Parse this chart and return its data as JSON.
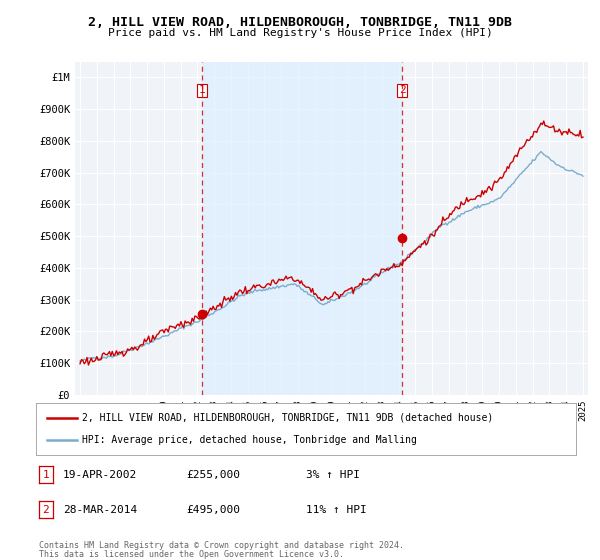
{
  "title": "2, HILL VIEW ROAD, HILDENBOROUGH, TONBRIDGE, TN11 9DB",
  "subtitle": "Price paid vs. HM Land Registry's House Price Index (HPI)",
  "legend_line1": "2, HILL VIEW ROAD, HILDENBOROUGH, TONBRIDGE, TN11 9DB (detached house)",
  "legend_line2": "HPI: Average price, detached house, Tonbridge and Malling",
  "footer1": "Contains HM Land Registry data © Crown copyright and database right 2024.",
  "footer2": "This data is licensed under the Open Government Licence v3.0.",
  "sale1_label": "1",
  "sale1_date": "19-APR-2002",
  "sale1_price": "£255,000",
  "sale1_hpi": "3% ↑ HPI",
  "sale1_year": 2002.29,
  "sale1_value": 255000,
  "sale2_label": "2",
  "sale2_date": "28-MAR-2014",
  "sale2_price": "£495,000",
  "sale2_hpi": "11% ↑ HPI",
  "sale2_year": 2014.21,
  "sale2_value": 495000,
  "line_color_price": "#cc0000",
  "line_color_hpi": "#7aadcf",
  "vline_color": "#cc0000",
  "dot_color": "#cc0000",
  "shade_color": "#ddeeff",
  "background_color": "#ffffff",
  "plot_bg_color": "#f0f4f8",
  "ylim": [
    0,
    1050000
  ],
  "yticks": [
    0,
    100000,
    200000,
    300000,
    400000,
    500000,
    600000,
    700000,
    800000,
    900000,
    1000000
  ],
  "ytick_labels": [
    "£0",
    "£100K",
    "£200K",
    "£300K",
    "£400K",
    "£500K",
    "£600K",
    "£700K",
    "£800K",
    "£900K",
    "£1M"
  ],
  "x_start_year": 1995,
  "x_end_year": 2025
}
